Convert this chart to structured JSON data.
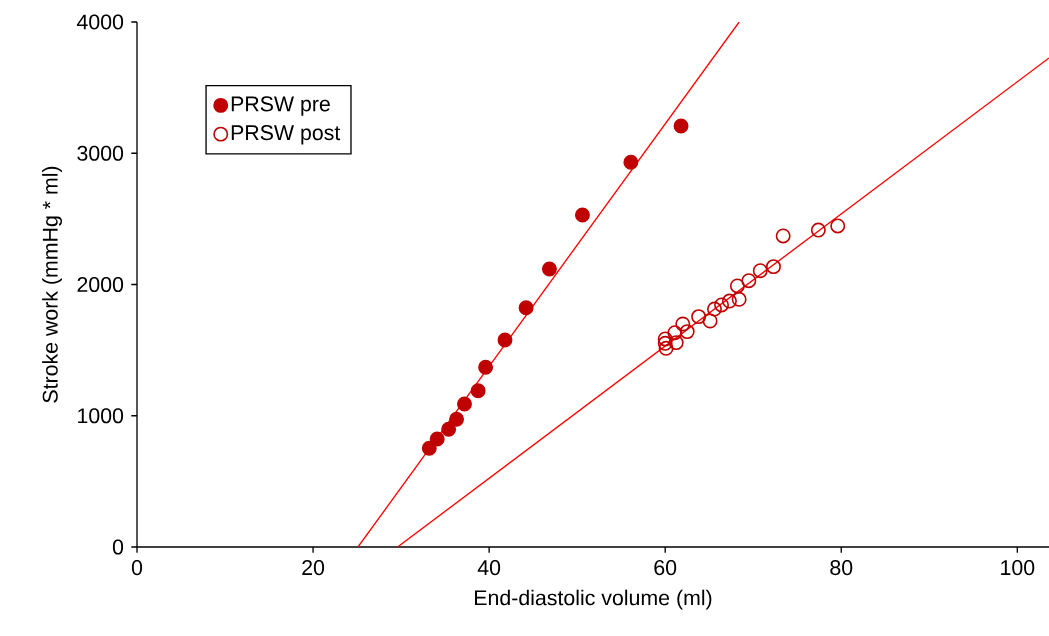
{
  "chart_data": {
    "type": "scatter",
    "xlabel": "End-diastolic volume (ml)",
    "ylabel": "Stroke work (mmHg * ml)",
    "xlim": [
      0,
      103.6
    ],
    "ylim": [
      0,
      4000
    ],
    "xticks": [
      0,
      20,
      40,
      60,
      80,
      100
    ],
    "yticks": [
      0,
      1000,
      2000,
      3000,
      4000
    ],
    "legend": "top left",
    "grid": false,
    "series": [
      {
        "name": "PRSW pre",
        "marker": "circle",
        "color": "#c00000",
        "x": [
          33.2,
          34.1,
          35.4,
          36.3,
          37.2,
          38.75,
          39.6,
          41.8,
          44.2,
          46.85,
          50.6,
          56.1,
          61.8
        ],
        "values": [
          752,
          823,
          897,
          973,
          1090,
          1191,
          1369,
          1577,
          1823,
          2118,
          2530,
          2931,
          3208
        ]
      },
      {
        "name": "PRSW post",
        "marker": "open circle",
        "color": "#c00000",
        "x": [
          60.0,
          60.0,
          60.1,
          61.1,
          61.25,
          62.0,
          62.5,
          63.8,
          65.1,
          65.6,
          66.4,
          67.3,
          68.4,
          68.2,
          69.5,
          70.8,
          72.3,
          73.4,
          77.4,
          79.6
        ],
        "values": [
          1585,
          1552,
          1514,
          1633,
          1557,
          1699,
          1641,
          1755,
          1722,
          1813,
          1844,
          1874,
          1887,
          1989,
          2029,
          2105,
          2136,
          2370,
          2415,
          2446
        ]
      },
      {
        "type": "line",
        "color": "#ff0000",
        "x": [
          25.1,
          68.4
        ],
        "values": [
          0,
          4000
        ]
      },
      {
        "type": "line",
        "color": "#ff0000",
        "x": [
          29.6,
          103.6
        ],
        "values": [
          0,
          3726
        ]
      }
    ]
  }
}
